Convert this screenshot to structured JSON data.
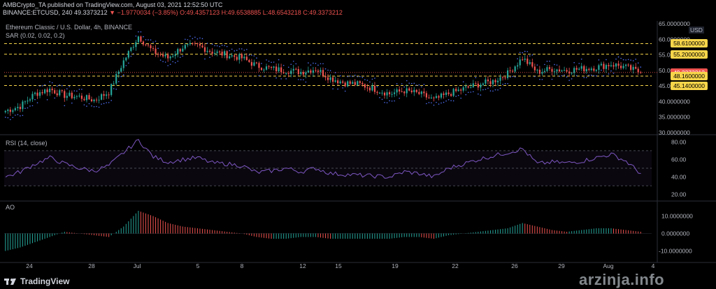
{
  "header": {
    "published": "AMBCrypto_TA published on TradingView.com, August 03, 2021 12:52:50 UTC",
    "symbol": "BINANCE:ETCUSD, 240",
    "price": "49.3373212",
    "change": "▼ −1.9770034 (−3.85%)",
    "ohlc": "O:49.4357123 H:49.6538885 L:48.6543218 C:49.3373212"
  },
  "main_pane": {
    "title": "Ethereum Classic / U.S. Dollar, 4h, BINANCE",
    "sar_label": "SAR (0.02, 0.02, 0.2)",
    "currency": "USD",
    "price_tags": [
      {
        "value": "58.6100000",
        "style": "yellow"
      },
      {
        "value": "55.2000000",
        "style": "yellow"
      },
      {
        "value": "49.3373212",
        "style": "red"
      },
      {
        "value": "48.1600000",
        "style": "yellow"
      },
      {
        "value": "45.1400000",
        "style": "yellow"
      }
    ]
  },
  "rsi_pane": {
    "label": "RSI (14, close)"
  },
  "ao_pane": {
    "label": "AO"
  },
  "footer": {
    "brand": "TradingView"
  },
  "watermark": "arzinja.info",
  "colors": {
    "up": "#26a69a",
    "down": "#ef5350",
    "sar": "#4e6ef2",
    "rsi": "#7e57c2",
    "level": "#f7d54a"
  },
  "chart_data": [
    {
      "type": "candlestick",
      "title": "Ethereum Classic / U.S. Dollar, 4h, BINANCE",
      "x_ticks": [
        "24",
        "28",
        "Jul",
        "5",
        "8",
        "12",
        "15",
        "19",
        "22",
        "26",
        "29",
        "Aug",
        "4"
      ],
      "y_ticks": [
        "65.0000000",
        "60.0000000",
        "55.0000000",
        "50.0000000",
        "45.0000000",
        "40.0000000",
        "35.0000000",
        "30.0000000"
      ],
      "ylim": [
        30,
        65
      ],
      "horizontal_levels": [
        58.61,
        55.2,
        48.16,
        45.14
      ],
      "last_price": 49.3373212,
      "close_path": [
        {
          "x": "Jun 21",
          "close": 37.0
        },
        {
          "x": "Jun 22",
          "close": 38.5
        },
        {
          "x": "Jun 23",
          "close": 42.5
        },
        {
          "x": "Jun 24",
          "close": 44.0
        },
        {
          "x": "Jun 25",
          "close": 42.0
        },
        {
          "x": "Jun 26",
          "close": 41.5
        },
        {
          "x": "Jun 27",
          "close": 40.5
        },
        {
          "x": "Jun 28",
          "close": 43.0
        },
        {
          "x": "Jun 29",
          "close": 53.0
        },
        {
          "x": "Jun 30",
          "close": 61.0
        },
        {
          "x": "Jul 1",
          "close": 56.0
        },
        {
          "x": "Jul 2",
          "close": 54.0
        },
        {
          "x": "Jul 3",
          "close": 57.5
        },
        {
          "x": "Jul 4",
          "close": 58.0
        },
        {
          "x": "Jul 5",
          "close": 56.0
        },
        {
          "x": "Jul 6",
          "close": 55.0
        },
        {
          "x": "Jul 7",
          "close": 54.0
        },
        {
          "x": "Jul 8",
          "close": 51.5
        },
        {
          "x": "Jul 9",
          "close": 50.5
        },
        {
          "x": "Jul 10",
          "close": 50.0
        },
        {
          "x": "Jul 11",
          "close": 49.5
        },
        {
          "x": "Jul 12",
          "close": 50.5
        },
        {
          "x": "Jul 13",
          "close": 47.5
        },
        {
          "x": "Jul 14",
          "close": 46.0
        },
        {
          "x": "Jul 15",
          "close": 45.5
        },
        {
          "x": "Jul 16",
          "close": 44.0
        },
        {
          "x": "Jul 17",
          "close": 42.5
        },
        {
          "x": "Jul 18",
          "close": 43.5
        },
        {
          "x": "Jul 19",
          "close": 42.5
        },
        {
          "x": "Jul 20",
          "close": 40.5
        },
        {
          "x": "Jul 21",
          "close": 42.5
        },
        {
          "x": "Jul 22",
          "close": 44.0
        },
        {
          "x": "Jul 23",
          "close": 45.5
        },
        {
          "x": "Jul 24",
          "close": 46.5
        },
        {
          "x": "Jul 25",
          "close": 49.0
        },
        {
          "x": "Jul 26",
          "close": 54.0
        },
        {
          "x": "Jul 27",
          "close": 49.5
        },
        {
          "x": "Jul 28",
          "close": 50.5
        },
        {
          "x": "Jul 29",
          "close": 50.0
        },
        {
          "x": "Jul 30",
          "close": 50.5
        },
        {
          "x": "Jul 31",
          "close": 51.0
        },
        {
          "x": "Aug 1",
          "close": 52.0
        },
        {
          "x": "Aug 2",
          "close": 51.0
        },
        {
          "x": "Aug 3",
          "close": 49.3
        }
      ]
    },
    {
      "type": "line",
      "title": "RSI (14, close)",
      "y_ticks": [
        "80.00",
        "60.00",
        "40.00",
        "20.00"
      ],
      "ylim": [
        15,
        85
      ],
      "band": [
        30,
        70
      ],
      "values": [
        40,
        46,
        55,
        62,
        55,
        50,
        47,
        53,
        68,
        82,
        63,
        57,
        60,
        62,
        56,
        55,
        53,
        45,
        47,
        50,
        46,
        50,
        44,
        43,
        42,
        41,
        40,
        46,
        44,
        40,
        50,
        55,
        60,
        64,
        68,
        72,
        55,
        57,
        56,
        58,
        62,
        66,
        58,
        44
      ]
    },
    {
      "type": "bar",
      "title": "AO",
      "y_ticks": [
        "10.0000000",
        "0.0000000",
        "-10.0000000"
      ],
      "ylim": [
        -15,
        17
      ],
      "values": [
        -10,
        -8,
        -5,
        -2,
        1,
        0,
        -1,
        -2,
        4,
        13,
        10,
        6,
        4,
        3,
        2,
        1,
        0,
        -2,
        -3,
        -3,
        -2,
        -2,
        -3,
        -3,
        -3,
        -3,
        -3,
        -2,
        -2,
        -3,
        -1,
        0,
        1,
        2,
        3,
        6,
        4,
        2,
        1,
        2,
        3,
        3,
        2,
        1
      ]
    }
  ]
}
